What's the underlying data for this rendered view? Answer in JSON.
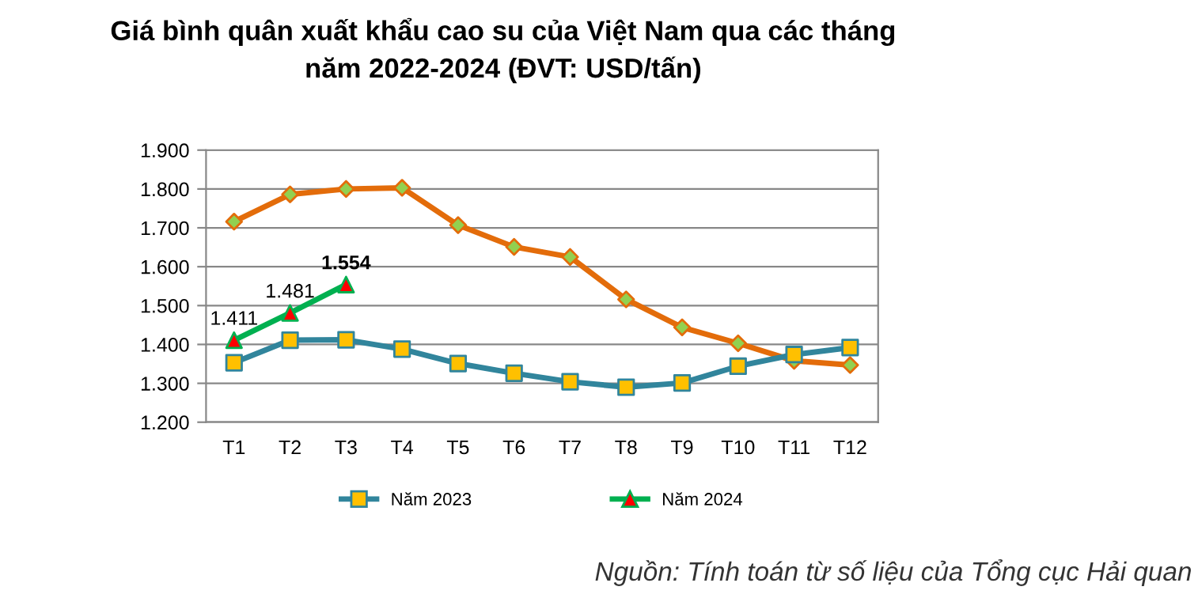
{
  "chart_data": {
    "type": "line",
    "title": "Giá bình quân xuất khẩu cao su của Việt Nam qua các tháng\nnăm 2022-2024 (ĐVT: USD/tấn)",
    "categories": [
      "T1",
      "T2",
      "T3",
      "T4",
      "T5",
      "T6",
      "T7",
      "T8",
      "T9",
      "T10",
      "T11",
      "T12"
    ],
    "series": [
      {
        "color": "#e36c0a",
        "marker": "diamond",
        "colors": [
          "#92d050",
          "#92d050",
          "#92d050",
          "#92d050",
          "#92d050",
          "#92d050",
          "#92d050",
          "#92d050",
          "#92d050",
          "#92d050",
          "#92d050",
          "#92d050"
        ],
        "values": [
          1716,
          1786,
          1800,
          1803,
          1707,
          1651,
          1625,
          1516,
          1444,
          1403,
          1358,
          1347
        ]
      },
      {
        "name": "Năm 2023",
        "color": "#31859c",
        "marker": "square",
        "colors": [
          "#ffc000",
          "#ffc000",
          "#ffc000",
          "#ffc000",
          "#ffc000",
          "#ffc000",
          "#ffc000",
          "#ffc000",
          "#ffc000",
          "#ffc000",
          "#ffc000",
          "#ffc000"
        ],
        "values": [
          1353,
          1411,
          1412,
          1388,
          1351,
          1326,
          1304,
          1290,
          1301,
          1344,
          1374,
          1392
        ]
      },
      {
        "name": "Năm 2024",
        "color": "#00b050",
        "marker": "triangle",
        "colors": [
          "#ff0000",
          "#ff0000",
          "#ff0000",
          null,
          null,
          null,
          null,
          null,
          null,
          null,
          null,
          null
        ],
        "values": [
          1411,
          1481,
          1554,
          null,
          null,
          null,
          null,
          null,
          null,
          null,
          null,
          null
        ],
        "value_labels": [
          "1.411",
          "1.481",
          "1.554",
          null,
          null,
          null,
          null,
          null,
          null,
          null,
          null,
          null
        ]
      }
    ],
    "ylim": [
      1200,
      1900
    ],
    "yticks": [
      {
        "value": 1200,
        "label": "1.200"
      },
      {
        "value": 1300,
        "label": "1.300"
      },
      {
        "value": 1400,
        "label": "1.400"
      },
      {
        "value": 1500,
        "label": "1.500"
      },
      {
        "value": 1600,
        "label": "1.600"
      },
      {
        "value": 1700,
        "label": "1.700"
      },
      {
        "value": 1800,
        "label": "1.800"
      },
      {
        "value": 1900,
        "label": "1.900"
      }
    ],
    "grid": "y",
    "legend": "bottom",
    "line_style": "solid",
    "annotations": [
      "Nguồn: Tính toán từ số liệu của Tổng cục Hải quan"
    ]
  }
}
